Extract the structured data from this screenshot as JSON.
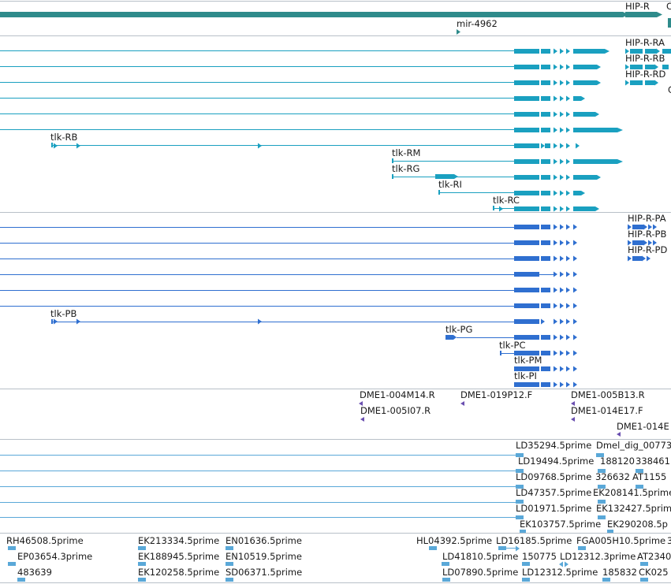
{
  "colors": {
    "gene": "#2e8b8b",
    "transcript": "#1aa0c0",
    "protein": "#2f6fd0",
    "clone": "#6a4fb0",
    "est": "#5aa8d8",
    "divider": "#b8c0c8"
  },
  "gene_track": {
    "genes": [
      {
        "label": "HIP-R"
      },
      {
        "label": "C"
      }
    ],
    "mirna": {
      "label": "mir-4962"
    }
  },
  "transcripts": {
    "left": [
      {
        "label": "tlk-RB"
      },
      {
        "label": "tlk-RM"
      },
      {
        "label": "tlk-RG"
      },
      {
        "label": "tlk-RI"
      },
      {
        "label": "tlk-RC"
      }
    ],
    "right": [
      {
        "label": "HIP-R-RA"
      },
      {
        "label": "HIP-R-RB"
      },
      {
        "label": "HIP-R-RD"
      },
      {
        "label": "C"
      }
    ]
  },
  "proteins": {
    "left": [
      {
        "label": "tlk-PB"
      },
      {
        "label": "tlk-PG"
      },
      {
        "label": "tlk-PC"
      },
      {
        "label": "tlk-PM"
      },
      {
        "label": "tlk-PI"
      }
    ],
    "right": [
      {
        "label": "HIP-R-PA"
      },
      {
        "label": "HIP-R-PB"
      },
      {
        "label": "HIP-R-PD"
      }
    ]
  },
  "clones": [
    {
      "label": "DME1-004M14.R"
    },
    {
      "label": "DME1-019P12.F"
    },
    {
      "label": "DME1-005B13.R"
    },
    {
      "label": "DME1-005I07.R"
    },
    {
      "label": "DME1-014E17.F"
    },
    {
      "label": "DME1-014E"
    }
  ],
  "ests_tracks": [
    {
      "label": "LD35294.5prime"
    },
    {
      "label": "Dmel_dig_00773"
    },
    {
      "label": "LD19494.5prime"
    },
    {
      "label": "188120"
    },
    {
      "label": "338461"
    },
    {
      "label": "LD09768.5prime"
    },
    {
      "label": "326632"
    },
    {
      "label": "AT1155"
    },
    {
      "label": "LD47357.5prime"
    },
    {
      "label": "EK208141.5prime"
    },
    {
      "label": "LD01971.5prime"
    },
    {
      "label": "EK132427.5prime"
    },
    {
      "label": "EK103757.5prime"
    },
    {
      "label": "EK290208.5p"
    }
  ],
  "ests_bottom": [
    {
      "label": "RH46508.5prime"
    },
    {
      "label": "EK213334.5prime"
    },
    {
      "label": "EN01636.5prime"
    },
    {
      "label": "HL04392.5prime"
    },
    {
      "label": "LD16185.5prime"
    },
    {
      "label": "FGA005H10.5prime"
    },
    {
      "label": "3"
    },
    {
      "label": "EP03654.3prime"
    },
    {
      "label": "EK188945.5prime"
    },
    {
      "label": "EN10519.5prime"
    },
    {
      "label": "LD41810.5prime"
    },
    {
      "label": "150775"
    },
    {
      "label": "LD12312.3prime"
    },
    {
      "label": "AT2340"
    },
    {
      "label": "483639"
    },
    {
      "label": "EK120258.5prime"
    },
    {
      "label": "SD06371.5prime"
    },
    {
      "label": "LD07890.5prime"
    },
    {
      "label": "LD12312.5prime"
    },
    {
      "label": "185832"
    },
    {
      "label": "CK025"
    }
  ]
}
